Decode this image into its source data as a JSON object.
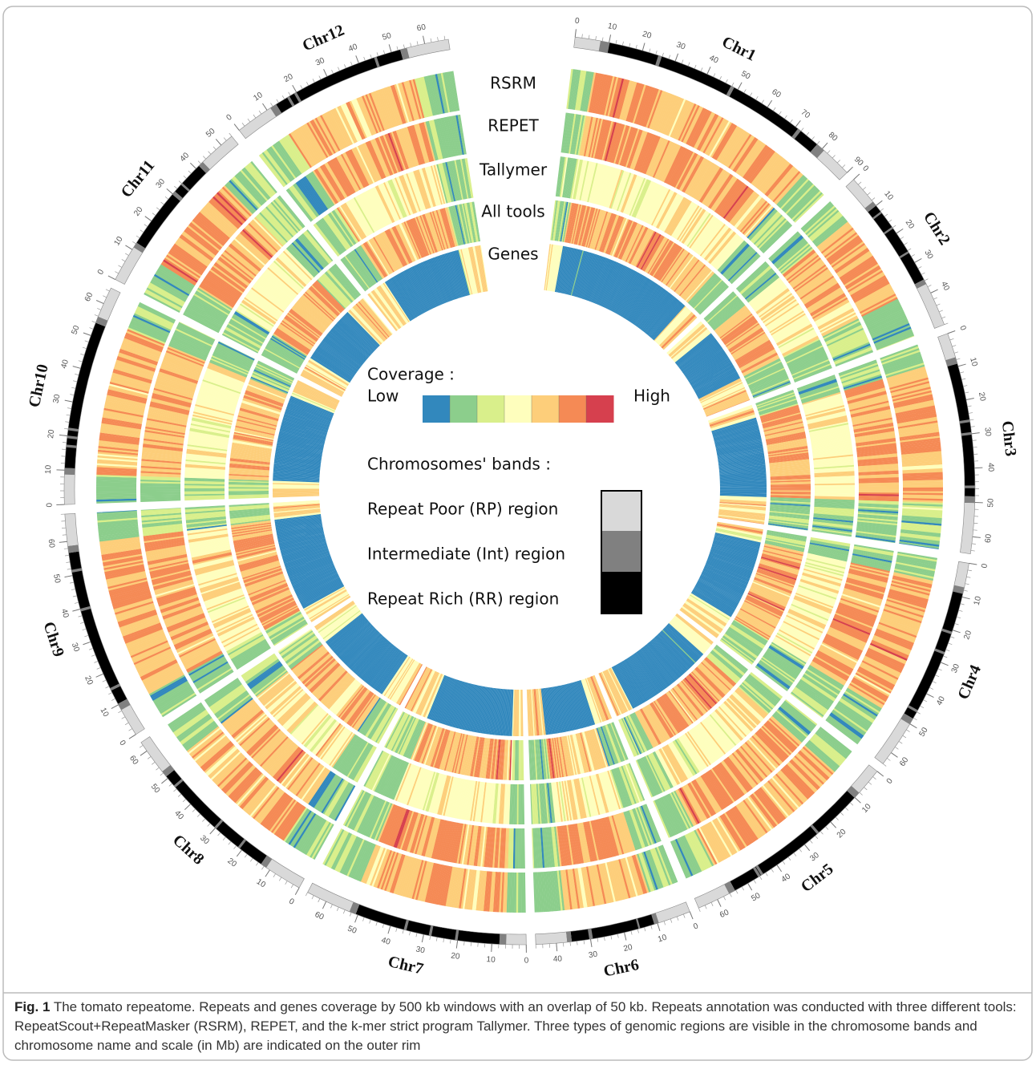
{
  "tracks": [
    "RSRM",
    "REPET",
    "Tallymer",
    "All tools",
    "Genes"
  ],
  "chromosomes": [
    {
      "name": "Chr1",
      "length": 90,
      "ticks": [
        0,
        10,
        20,
        30,
        40,
        50,
        60,
        70,
        80,
        90
      ]
    },
    {
      "name": "Chr2",
      "length": 50,
      "ticks": [
        0,
        10,
        20,
        30,
        40
      ]
    },
    {
      "name": "Chr3",
      "length": 65,
      "ticks": [
        0,
        10,
        20,
        30,
        40,
        50,
        60
      ]
    },
    {
      "name": "Chr4",
      "length": 64,
      "ticks": [
        0,
        10,
        20,
        30,
        40,
        50,
        60
      ]
    },
    {
      "name": "Chr5",
      "length": 66,
      "ticks": [
        0,
        10,
        20,
        30,
        40,
        50,
        60
      ]
    },
    {
      "name": "Chr6",
      "length": 46,
      "ticks": [
        0,
        10,
        20,
        30,
        40
      ]
    },
    {
      "name": "Chr7",
      "length": 66,
      "ticks": [
        0,
        10,
        20,
        30,
        40,
        50,
        60
      ]
    },
    {
      "name": "Chr8",
      "length": 63,
      "ticks": [
        0,
        10,
        20,
        30,
        40,
        50,
        60
      ]
    },
    {
      "name": "Chr9",
      "length": 68,
      "ticks": [
        0,
        10,
        20,
        30,
        40,
        50,
        60
      ]
    },
    {
      "name": "Chr10",
      "length": 65,
      "ticks": [
        0,
        10,
        20,
        30,
        40,
        50,
        60
      ]
    },
    {
      "name": "Chr11",
      "length": 54,
      "ticks": [
        0,
        10,
        20,
        30,
        40,
        50
      ]
    },
    {
      "name": "Chr12",
      "length": 67,
      "ticks": [
        0,
        10,
        20,
        30,
        40,
        50,
        60
      ]
    }
  ],
  "legend": {
    "coverage_title": "Coverage :",
    "low": "Low",
    "high": "High",
    "colors": [
      "#3288bd",
      "#8cce8c",
      "#d9ef8b",
      "#fefebd",
      "#fdce7a",
      "#f58a55",
      "#d6404e"
    ],
    "bands_title": "Chromosomes' bands :",
    "bands": [
      {
        "label": "Repeat Poor (RP) region",
        "color": "#d9d9d9"
      },
      {
        "label": "Intermediate  (Int) region",
        "color": "#808080"
      },
      {
        "label": "Repeat Rich (RR) region",
        "color": "#000000"
      }
    ]
  },
  "caption": {
    "label": "Fig. 1",
    "text": "The tomato repeatome. Repeats and genes coverage by 500 kb windows with an overlap of 50 kb. Repeats annotation was conducted with three different tools: RepeatScout+RepeatMasker (RSRM), REPET, and the k-mer strict program Tallymer. Three types of genomic regions are visible in the chromosome bands and chromosome name and scale (in Mb) are indicated on the outer rim"
  }
}
